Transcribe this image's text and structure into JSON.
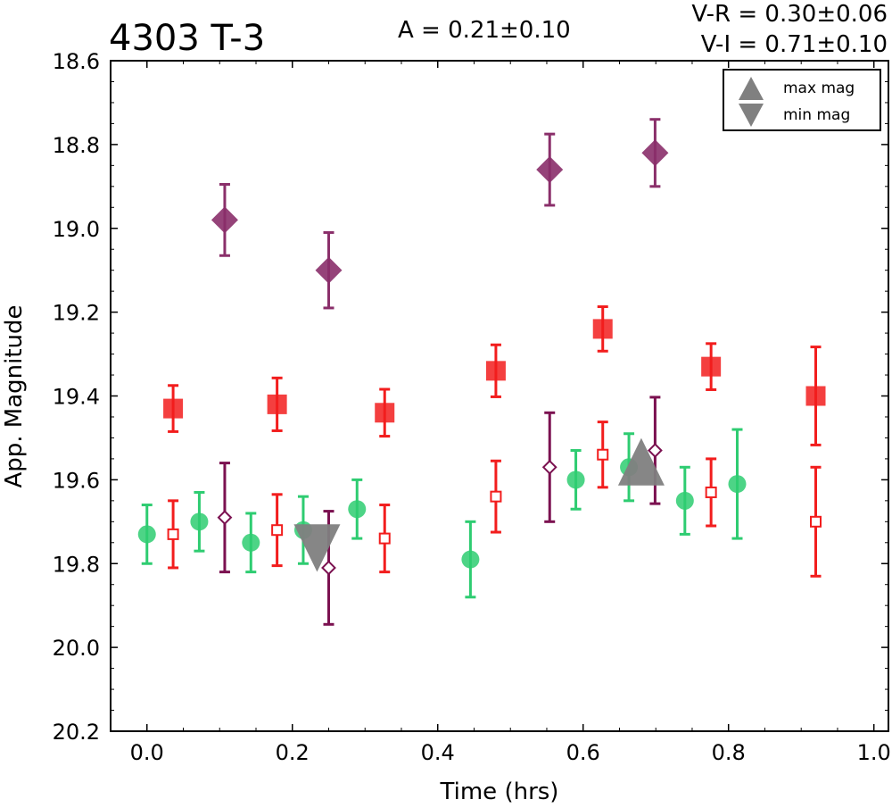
{
  "chart_data": {
    "type": "scatter",
    "title": "4303 T-3",
    "annotations": {
      "amplitude": "A  = 0.21±0.10",
      "vr": "V-R = 0.30±0.06",
      "vi": "V-I  = 0.71±0.10"
    },
    "xlabel": "Time (hrs)",
    "ylabel": "App. Magnitude",
    "xlim": [
      -0.05,
      1.02
    ],
    "ylim": [
      20.2,
      18.6
    ],
    "y_inverted": true,
    "xticks": [
      "0.0",
      "0.2",
      "0.4",
      "0.6",
      "0.8",
      "1.0"
    ],
    "yticks": [
      "18.6",
      "18.8",
      "19.0",
      "19.2",
      "19.4",
      "19.6",
      "19.8",
      "20.0",
      "20.2"
    ],
    "grid": false,
    "legend_position": "top-right",
    "series": [
      {
        "name": "",
        "color": "#2ecc71",
        "marker": "circle",
        "points": [
          {
            "x": 0.0,
            "y": 19.73,
            "err": 0.07
          },
          {
            "x": 0.072,
            "y": 19.7,
            "err": 0.07
          },
          {
            "x": 0.143,
            "y": 19.75,
            "err": 0.07
          },
          {
            "x": 0.215,
            "y": 19.72,
            "err": 0.08
          },
          {
            "x": 0.289,
            "y": 19.67,
            "err": 0.07
          },
          {
            "x": 0.445,
            "y": 19.79,
            "err": 0.09
          },
          {
            "x": 0.59,
            "y": 19.6,
            "err": 0.07
          },
          {
            "x": 0.663,
            "y": 19.57,
            "err": 0.08
          },
          {
            "x": 0.74,
            "y": 19.65,
            "err": 0.08
          },
          {
            "x": 0.812,
            "y": 19.61,
            "err": 0.13
          }
        ]
      },
      {
        "name": "",
        "color": "#f21d1d",
        "marker": "square",
        "points": [
          {
            "x": 0.036,
            "y": 19.43,
            "err": 0.055
          },
          {
            "x": 0.179,
            "y": 19.42,
            "err": 0.063
          },
          {
            "x": 0.327,
            "y": 19.44,
            "err": 0.056
          },
          {
            "x": 0.48,
            "y": 19.34,
            "err": 0.062
          },
          {
            "x": 0.627,
            "y": 19.24,
            "err": 0.053
          },
          {
            "x": 0.776,
            "y": 19.33,
            "err": 0.055
          },
          {
            "x": 0.92,
            "y": 19.4,
            "err": 0.117
          }
        ]
      },
      {
        "name": "",
        "color": "#f21d1d",
        "marker": "square-open",
        "points": [
          {
            "x": 0.036,
            "y": 19.73,
            "err": 0.08
          },
          {
            "x": 0.179,
            "y": 19.72,
            "err": 0.085
          },
          {
            "x": 0.327,
            "y": 19.74,
            "err": 0.08
          },
          {
            "x": 0.48,
            "y": 19.64,
            "err": 0.085
          },
          {
            "x": 0.627,
            "y": 19.54,
            "err": 0.078
          },
          {
            "x": 0.776,
            "y": 19.63,
            "err": 0.08
          },
          {
            "x": 0.92,
            "y": 19.7,
            "err": 0.13
          }
        ]
      },
      {
        "name": "",
        "color": "#8a2f6a",
        "marker": "diamond",
        "points": [
          {
            "x": 0.107,
            "y": 18.98,
            "err": 0.085
          },
          {
            "x": 0.25,
            "y": 19.1,
            "err": 0.09
          },
          {
            "x": 0.554,
            "y": 18.86,
            "err": 0.085
          },
          {
            "x": 0.699,
            "y": 18.82,
            "err": 0.08
          }
        ]
      },
      {
        "name": "",
        "color": "#7b1150",
        "marker": "diamond-open",
        "points": [
          {
            "x": 0.107,
            "y": 19.69,
            "err": 0.13
          },
          {
            "x": 0.25,
            "y": 19.81,
            "err": 0.135
          },
          {
            "x": 0.554,
            "y": 19.57,
            "err": 0.13
          },
          {
            "x": 0.699,
            "y": 19.53,
            "err": 0.127
          }
        ]
      }
    ],
    "extrema": [
      {
        "name": "max mag",
        "x": 0.68,
        "y": 19.56,
        "marker": "triangle-up",
        "color": "#808080"
      },
      {
        "name": "min mag",
        "x": 0.234,
        "y": 19.76,
        "marker": "triangle-down",
        "color": "#808080"
      }
    ]
  }
}
